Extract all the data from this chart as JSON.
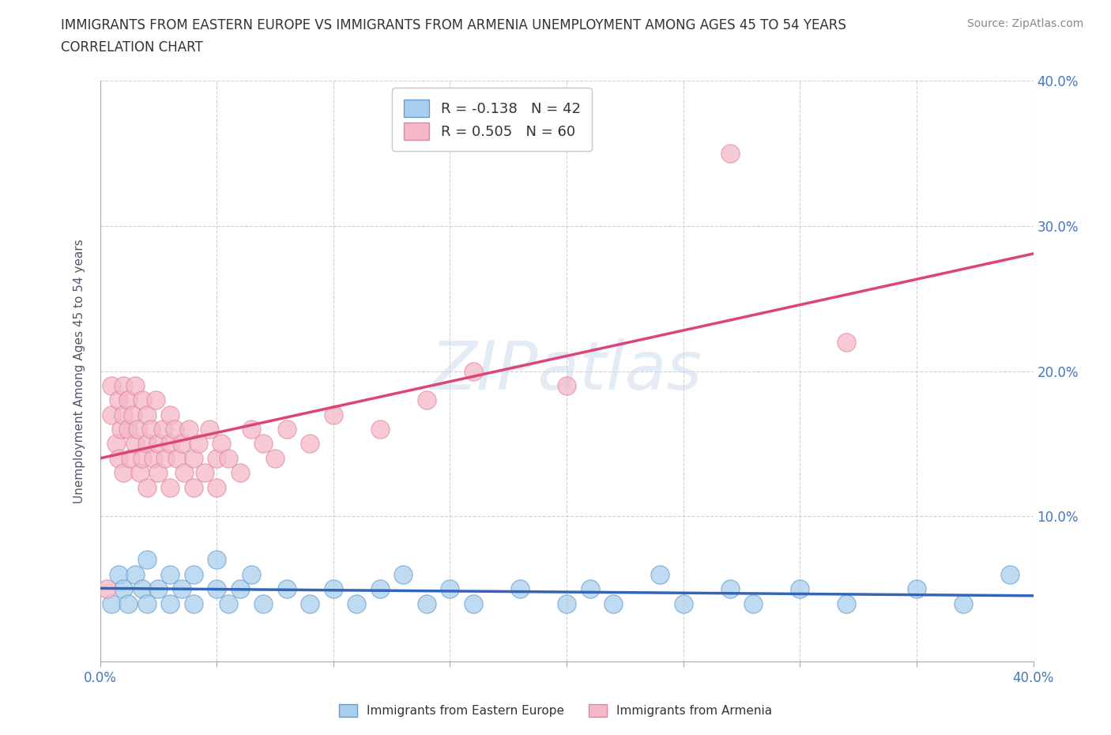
{
  "title_line1": "IMMIGRANTS FROM EASTERN EUROPE VS IMMIGRANTS FROM ARMENIA UNEMPLOYMENT AMONG AGES 45 TO 54 YEARS",
  "title_line2": "CORRELATION CHART",
  "source": "Source: ZipAtlas.com",
  "ylabel": "Unemployment Among Ages 45 to 54 years",
  "xlim": [
    0.0,
    0.4
  ],
  "ylim": [
    0.0,
    0.4
  ],
  "xticks": [
    0.0,
    0.05,
    0.1,
    0.15,
    0.2,
    0.25,
    0.3,
    0.35,
    0.4
  ],
  "yticks": [
    0.0,
    0.1,
    0.2,
    0.3,
    0.4
  ],
  "watermark_text": "ZIPatlas",
  "series1_name": "Immigrants from Eastern Europe",
  "series1_color": "#aacfee",
  "series1_edge_color": "#6699cc",
  "series1_line_color": "#3366bb",
  "series1_R": -0.138,
  "series1_N": 42,
  "series2_name": "Immigrants from Armenia",
  "series2_color": "#f5b8c8",
  "series2_edge_color": "#dd8899",
  "series2_line_color": "#dd4477",
  "series2_R": 0.505,
  "series2_N": 60,
  "grid_color": "#cccccc",
  "background_color": "#ffffff",
  "tick_color": "#4477bb",
  "ylabel_color": "#555566",
  "title_color": "#333333",
  "source_color": "#888888",
  "eastern_europe_x": [
    0.005,
    0.008,
    0.01,
    0.012,
    0.015,
    0.018,
    0.02,
    0.02,
    0.025,
    0.03,
    0.03,
    0.035,
    0.04,
    0.04,
    0.05,
    0.05,
    0.055,
    0.06,
    0.065,
    0.07,
    0.08,
    0.09,
    0.1,
    0.11,
    0.12,
    0.13,
    0.14,
    0.15,
    0.16,
    0.18,
    0.2,
    0.21,
    0.22,
    0.24,
    0.25,
    0.27,
    0.28,
    0.3,
    0.32,
    0.35,
    0.37,
    0.39
  ],
  "eastern_europe_y": [
    0.04,
    0.06,
    0.05,
    0.04,
    0.06,
    0.05,
    0.04,
    0.07,
    0.05,
    0.06,
    0.04,
    0.05,
    0.06,
    0.04,
    0.05,
    0.07,
    0.04,
    0.05,
    0.06,
    0.04,
    0.05,
    0.04,
    0.05,
    0.04,
    0.05,
    0.06,
    0.04,
    0.05,
    0.04,
    0.05,
    0.04,
    0.05,
    0.04,
    0.06,
    0.04,
    0.05,
    0.04,
    0.05,
    0.04,
    0.05,
    0.04,
    0.06
  ],
  "armenia_x": [
    0.003,
    0.005,
    0.005,
    0.007,
    0.008,
    0.008,
    0.009,
    0.01,
    0.01,
    0.01,
    0.012,
    0.012,
    0.013,
    0.014,
    0.015,
    0.015,
    0.016,
    0.017,
    0.018,
    0.018,
    0.02,
    0.02,
    0.02,
    0.022,
    0.023,
    0.024,
    0.025,
    0.025,
    0.027,
    0.028,
    0.03,
    0.03,
    0.03,
    0.032,
    0.033,
    0.035,
    0.036,
    0.038,
    0.04,
    0.04,
    0.042,
    0.045,
    0.047,
    0.05,
    0.05,
    0.052,
    0.055,
    0.06,
    0.065,
    0.07,
    0.075,
    0.08,
    0.09,
    0.1,
    0.12,
    0.14,
    0.16,
    0.2,
    0.27,
    0.32
  ],
  "armenia_y": [
    0.05,
    0.19,
    0.17,
    0.15,
    0.18,
    0.14,
    0.16,
    0.19,
    0.17,
    0.13,
    0.16,
    0.18,
    0.14,
    0.17,
    0.19,
    0.15,
    0.16,
    0.13,
    0.18,
    0.14,
    0.17,
    0.15,
    0.12,
    0.16,
    0.14,
    0.18,
    0.15,
    0.13,
    0.16,
    0.14,
    0.17,
    0.15,
    0.12,
    0.16,
    0.14,
    0.15,
    0.13,
    0.16,
    0.14,
    0.12,
    0.15,
    0.13,
    0.16,
    0.14,
    0.12,
    0.15,
    0.14,
    0.13,
    0.16,
    0.15,
    0.14,
    0.16,
    0.15,
    0.17,
    0.16,
    0.18,
    0.2,
    0.19,
    0.35,
    0.22
  ]
}
